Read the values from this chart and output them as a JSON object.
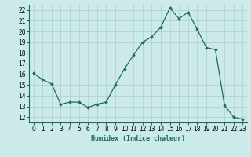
{
  "x": [
    0,
    1,
    2,
    3,
    4,
    5,
    6,
    7,
    8,
    9,
    10,
    11,
    12,
    13,
    14,
    15,
    16,
    17,
    18,
    19,
    20,
    21,
    22,
    23
  ],
  "y": [
    16.1,
    15.5,
    15.1,
    13.2,
    13.4,
    13.4,
    12.9,
    13.2,
    13.4,
    15.0,
    16.5,
    17.8,
    19.0,
    19.5,
    20.4,
    22.2,
    21.2,
    21.8,
    20.2,
    18.5,
    18.3,
    13.1,
    12.0,
    11.8
  ],
  "xlabel": "Humidex (Indice chaleur)",
  "ylabel_ticks": [
    12,
    13,
    14,
    15,
    16,
    17,
    18,
    19,
    20,
    21,
    22
  ],
  "xlim": [
    -0.5,
    23.5
  ],
  "ylim": [
    11.5,
    22.5
  ],
  "line_color": "#1a6b5a",
  "marker_color": "#1a6b5a",
  "bg_color": "#cceaea",
  "grid_color": "#aacece",
  "xlabel_fontsize": 6.0,
  "tick_fontsize": 5.5
}
